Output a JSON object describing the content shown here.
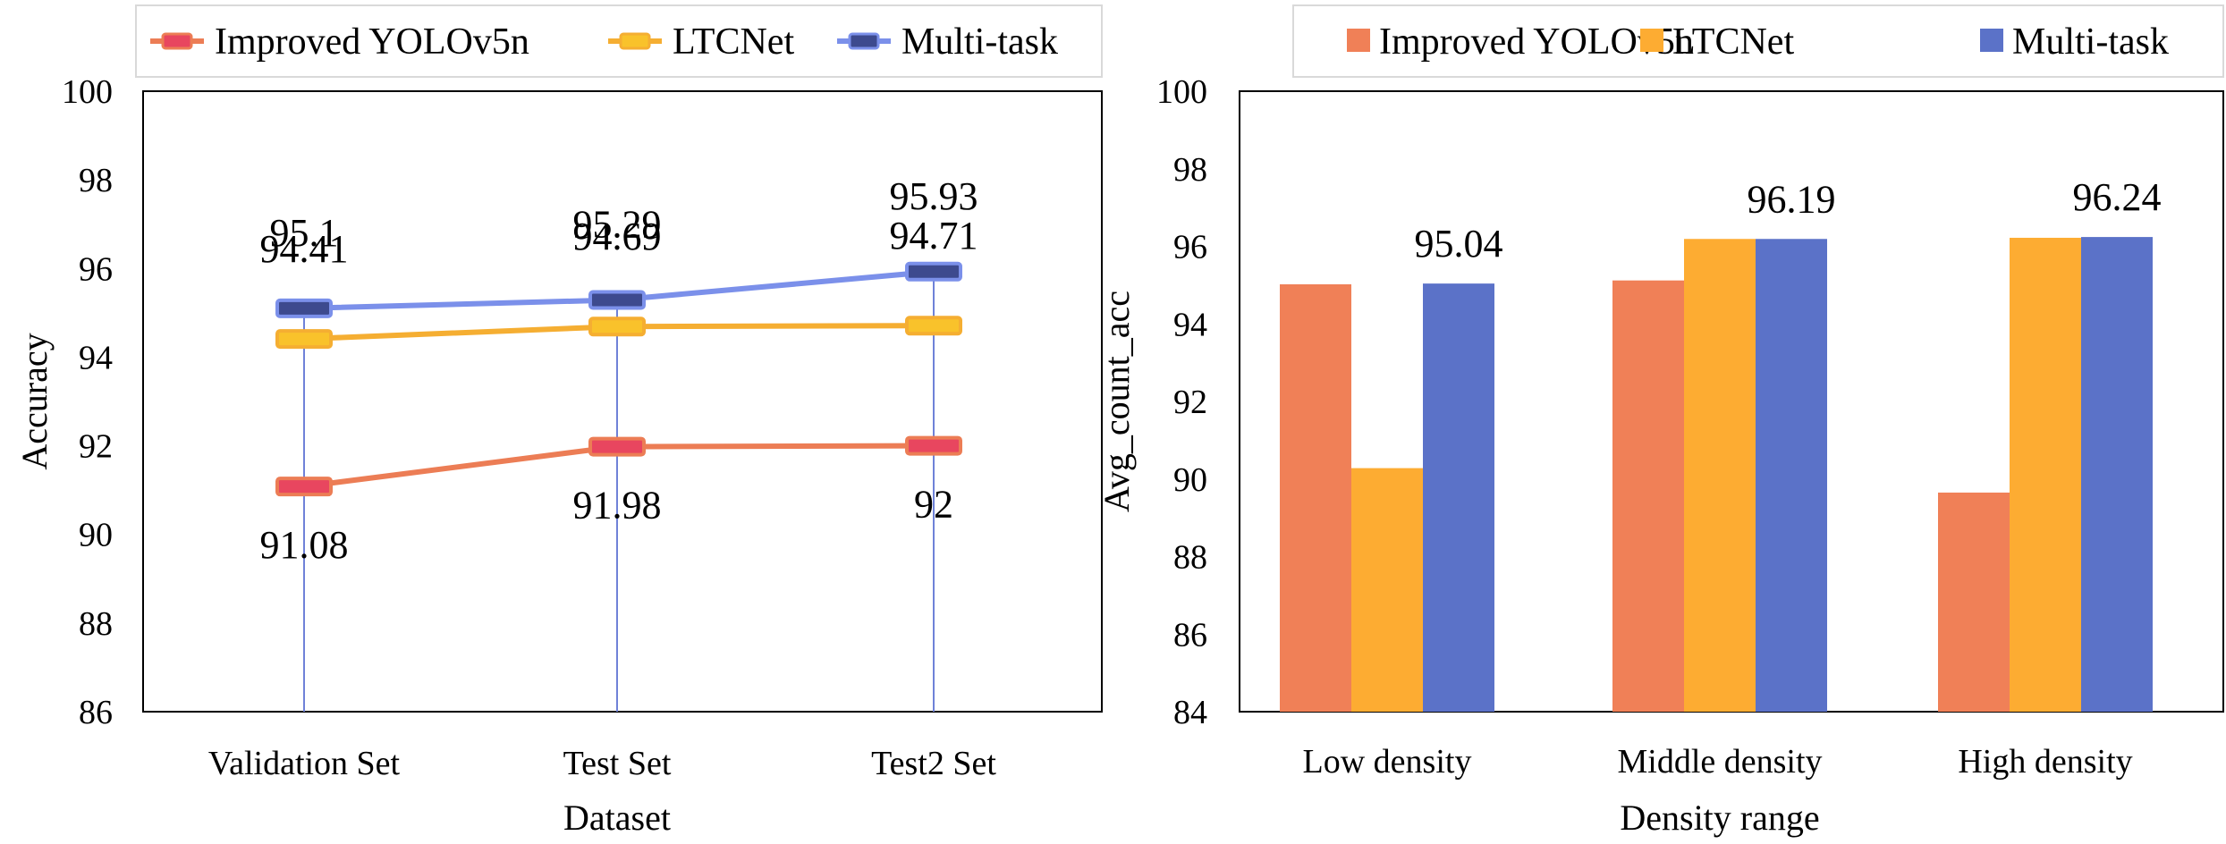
{
  "chart_data": [
    {
      "type": "line",
      "xlabel": "Dataset",
      "ylabel": "Accuracy",
      "ylim": [
        86,
        100
      ],
      "yticks": [
        "86",
        "88",
        "90",
        "92",
        "94",
        "96",
        "98",
        "100"
      ],
      "categories": [
        "Validation Set",
        "Test Set",
        "Test2 Set"
      ],
      "legend_position": "top",
      "series": [
        {
          "name": "Improved YOLOv5n",
          "values": [
            91.08,
            91.98,
            92
          ],
          "labels": [
            "91.08",
            "91.98",
            "92"
          ],
          "color": "#ec7d55",
          "marker": "#e8465f"
        },
        {
          "name": "LTCNet",
          "values": [
            94.41,
            94.69,
            94.71
          ],
          "labels": [
            "94.41",
            "94.69",
            "94.71"
          ],
          "color": "#f5ae32",
          "marker": "#f9c22b"
        },
        {
          "name": "Multi-task",
          "values": [
            95.1,
            95.29,
            95.93
          ],
          "labels": [
            "95.1",
            "95.29",
            "95.93"
          ],
          "color": "#7b90ea",
          "marker": "#3d4a8e"
        }
      ]
    },
    {
      "type": "bar",
      "xlabel": "Density range",
      "ylabel": "Avg_count_acc",
      "ylim": [
        84,
        100
      ],
      "yticks": [
        "84",
        "86",
        "88",
        "90",
        "92",
        "94",
        "96",
        "98",
        "100"
      ],
      "categories": [
        "Low density",
        "Middle density",
        "High density"
      ],
      "legend_position": "top",
      "series": [
        {
          "name": "Improved YOLOv5n",
          "values": [
            95.02,
            95.12,
            89.65
          ],
          "color": "#f08057"
        },
        {
          "name": "LTCNet",
          "values": [
            90.28,
            96.19,
            96.22
          ],
          "color": "#fdac32"
        },
        {
          "name": "Multi-task",
          "values": [
            95.04,
            96.19,
            96.24
          ],
          "color": "#5b72c8",
          "labels": [
            "95.04",
            "96.19",
            "96.24"
          ]
        }
      ]
    }
  ]
}
